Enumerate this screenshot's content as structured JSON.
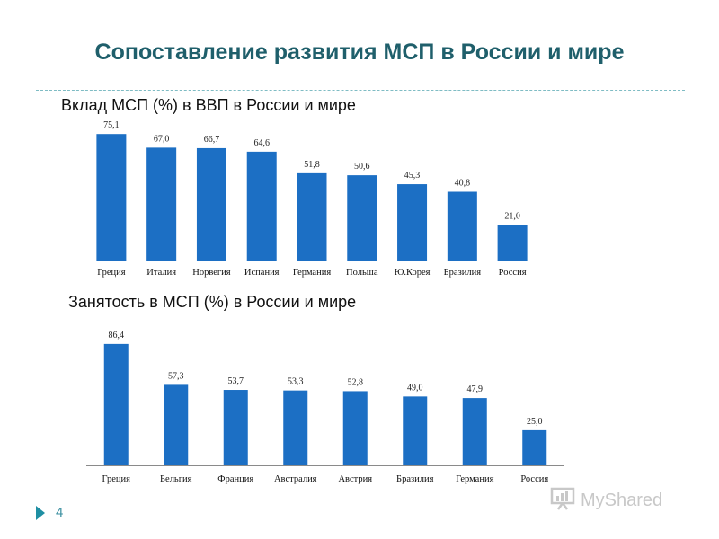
{
  "slide": {
    "title": "Сопоставление развития МСП в России и  мире",
    "number": "4",
    "watermark": "MyShared"
  },
  "chart_data": [
    {
      "type": "bar",
      "title": "Вклад МСП (%) в ВВП в России и мире",
      "categories": [
        "Греция",
        "Италия",
        "Норвегия",
        "Испания",
        "Германия",
        "Польша",
        "Ю.Корея",
        "Бразилия",
        "Россия"
      ],
      "values": [
        75.1,
        67.0,
        66.7,
        64.6,
        51.8,
        50.6,
        45.3,
        40.8,
        21.0
      ],
      "labels": [
        "75,1",
        "67,0",
        "66,7",
        "64,6",
        "51,8",
        "50,6",
        "45,3",
        "40,8",
        "21,0"
      ],
      "ylim": [
        0,
        80
      ],
      "color": "#1c6fc4",
      "grid": false
    },
    {
      "type": "bar",
      "title": "Занятость в МСП (%) в России и мире",
      "categories": [
        "Греция",
        "Бельгия",
        "Франция",
        "Австралия",
        "Австрия",
        "Бразилия",
        "Германия",
        "Россия"
      ],
      "values": [
        86.4,
        57.3,
        53.7,
        53.3,
        52.8,
        49.0,
        47.9,
        25.0
      ],
      "labels": [
        "86,4",
        "57,3",
        "53,7",
        "53,3",
        "52,8",
        "49,0",
        "47,9",
        "25,0"
      ],
      "ylim": [
        0,
        94
      ],
      "color": "#1c6fc4",
      "grid": false
    }
  ]
}
